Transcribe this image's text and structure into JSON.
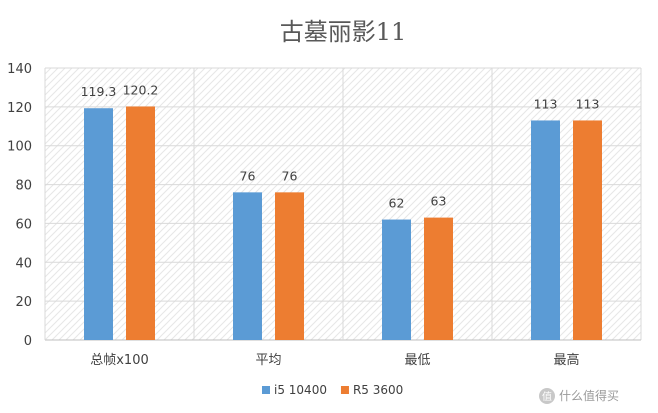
{
  "chart_data": {
    "type": "bar",
    "title": "古墓丽影11",
    "categories": [
      "总帧x100",
      "平均",
      "最低",
      "最高"
    ],
    "series": [
      {
        "name": "i5 10400",
        "color": "#5b9bd5",
        "values": [
          119.3,
          76,
          62,
          113
        ],
        "labels": [
          "119.3",
          "76",
          "62",
          "113"
        ]
      },
      {
        "name": "R5 3600",
        "color": "#ed7d31",
        "values": [
          120.2,
          76,
          63,
          113
        ],
        "labels": [
          "120.2",
          "76",
          "63",
          "113"
        ]
      }
    ],
    "ylim": [
      0,
      140
    ],
    "yticks": [
      0,
      20,
      40,
      60,
      80,
      100,
      120,
      140
    ],
    "grid": true,
    "legend": "bottom",
    "xlabel": "",
    "ylabel": ""
  },
  "watermark": {
    "text": "值 什么值得买",
    "icon": "smzdm-logo-icon"
  }
}
